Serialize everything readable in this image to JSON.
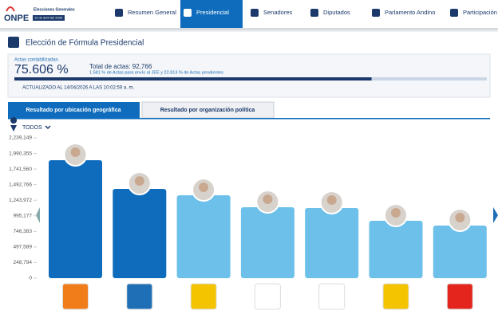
{
  "nav": {
    "brand": "ONPE",
    "brand_sub": "Elecciones Generales",
    "brand_date": "12 de abril del 2026",
    "items": [
      "Resumen General",
      "Presidencial",
      "Senadores",
      "Diputados",
      "Parlamento Andino",
      "Participación"
    ],
    "active": 1
  },
  "header": {
    "title": "Elección de Fórmula Presidencial"
  },
  "progress": {
    "label": "Actas contabilizadas",
    "value_label": "75.606 %",
    "value": 75.606,
    "total": "Total de actas: 92,766",
    "note": "1.581 % de Actas para envío al JEE y 22.813 % de Actas pendientes",
    "updated": "ACTUALIZADO AL 14/04/2026 A LAS 10:02:59 a. m."
  },
  "tabs": [
    "Resultado por ubicación geográfica",
    "Resultado por organización política"
  ],
  "filter": "TODOS",
  "chart_data": {
    "type": "bar",
    "categories": [
      null,
      null,
      null,
      null,
      null,
      null,
      null
    ],
    "values": [
      1883000,
      1425000,
      1323000,
      1132000,
      1120000,
      916000,
      840000
    ],
    "colors": [
      "#0f6cbd",
      "#0f6cbd",
      "#6cc0ea",
      "#6cc0ea",
      "#6cc0ea",
      "#6cc0ea",
      "#6cc0ea"
    ],
    "ylim": [
      0,
      2239149
    ],
    "yticks": [
      0,
      {
        "value": 248794,
        "label": "248,794"
      },
      {
        "value": 497589,
        "label": "497,589"
      },
      {
        "value": 746383,
        "label": "746,383"
      },
      {
        "value": 995177,
        "label": "995,177"
      },
      {
        "value": 1243972,
        "label": "1,243,972"
      },
      {
        "value": 1492766,
        "label": "1,492,766"
      },
      {
        "value": 1741560,
        "label": "1,741,560"
      },
      {
        "value": 1990355,
        "label": "1,990,355"
      },
      {
        "value": 2239149,
        "label": "2,239,149"
      }
    ]
  }
}
